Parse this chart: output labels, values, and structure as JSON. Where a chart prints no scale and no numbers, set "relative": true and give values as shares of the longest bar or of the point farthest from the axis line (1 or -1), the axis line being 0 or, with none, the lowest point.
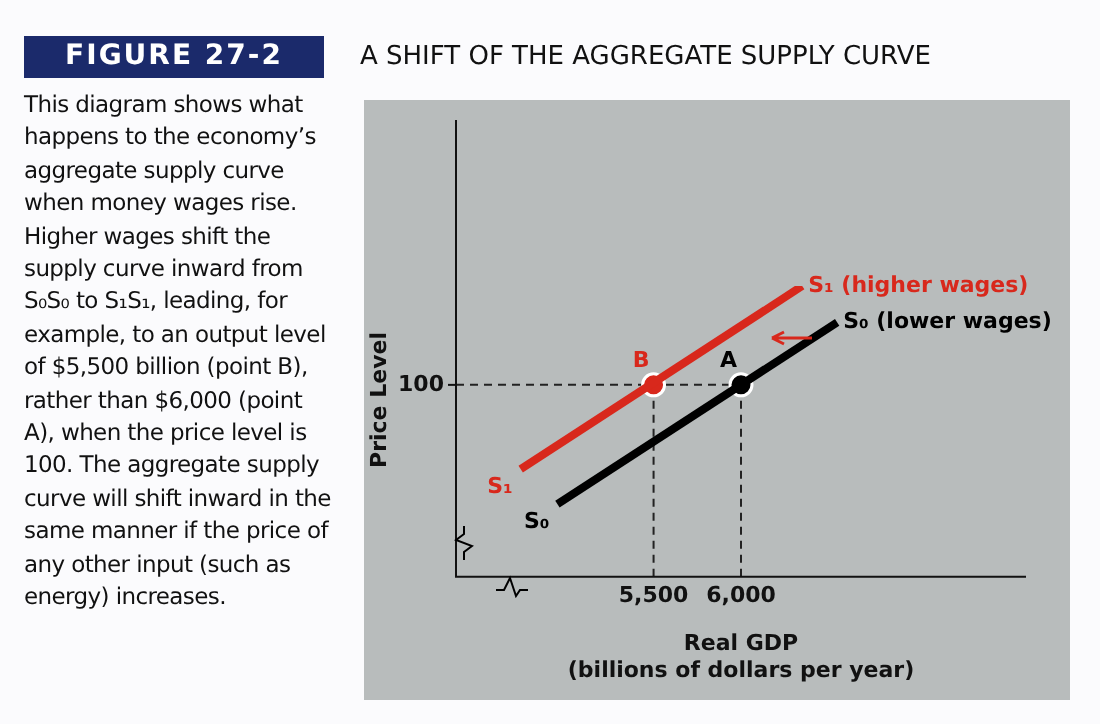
{
  "chart_data": {
    "type": "line",
    "title": "A SHIFT OF THE AGGREGATE SUPPLY CURVE",
    "subtitle": "FIGURE 27-2",
    "xlabel": "Real GDP\n(billions of dollars per year)",
    "ylabel": "Price Level",
    "relative": true,
    "xlim": [
      4370,
      7630
    ],
    "xticks": [
      {
        "value": 5500,
        "label": "5,500"
      },
      {
        "value": 6000,
        "label": "6,000"
      }
    ],
    "grid": false,
    "legend": false,
    "series": [
      {
        "name": "S₁ (higher wages)",
        "color": "#d8281c",
        "x": [
          4740,
          6350
        ],
        "values": [
          0.37,
          1
        ]
      },
      {
        "name": "S₀ (lower wages)",
        "color": "#000000",
        "x": [
          4950,
          6550
        ],
        "values": [
          0.25,
          0.875
        ]
      },
      {
        "type": "scatter",
        "color": "#d8281c",
        "x": [
          5500
        ],
        "values": [
          0.66
        ]
      },
      {
        "type": "scatter",
        "color": "#000000",
        "x": [
          6000
        ],
        "values": [
          0.66
        ]
      }
    ],
    "ref_lines": [
      {
        "axis": "y",
        "value": 0.66,
        "line_style": "dashed"
      },
      {
        "axis": "x",
        "value": 5500,
        "line_style": "dashed"
      },
      {
        "axis": "x",
        "value": 6000,
        "line_style": "dashed"
      }
    ],
    "annotations": [
      "This diagram shows what happens to the economy’s aggregate supply curve when money wages rise. Higher wages shift the supply curve inward from S₀S₀ to S₁S₁, leading, for example, to an output level of $5,500 billion (point B), rather than $6,000 (point A), when the price level is 100. The aggregate supply curve will shift inward in the same manner if the price of any other input (such as energy) increases.",
      "100",
      {
        "text": "B",
        "x": 5500,
        "y": 0.66
      },
      {
        "text": "A",
        "x": 6000,
        "y": 0.66
      },
      {
        "text": "S₁",
        "x": 4740,
        "y": 0.37
      },
      {
        "text": "S₀",
        "x": 4950,
        "y": 0.25
      }
    ]
  }
}
